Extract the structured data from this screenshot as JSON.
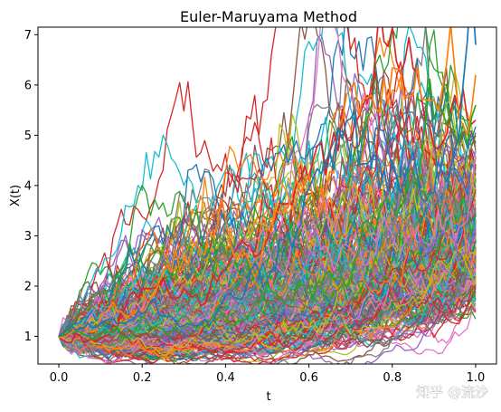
{
  "chart_data": {
    "type": "line",
    "title": "Euler-Maruyama Method",
    "xlabel": "t",
    "ylabel": "X(t)",
    "xlim": [
      -0.05,
      1.05
    ],
    "ylim": [
      0.45,
      7.15
    ],
    "xticks": [
      0.0,
      0.2,
      0.4,
      0.6,
      0.8,
      1.0
    ],
    "xtick_labels": [
      "0.0",
      "0.2",
      "0.4",
      "0.6",
      "0.8",
      "1.0"
    ],
    "yticks": [
      1,
      2,
      3,
      4,
      5,
      6,
      7
    ],
    "ytick_labels": [
      "1",
      "2",
      "3",
      "4",
      "5",
      "6",
      "7"
    ],
    "grid": false,
    "legend": "none",
    "x_start": 0.0,
    "x_end": 1.0,
    "initial_value": 1.0,
    "path_count": 300,
    "path_steps": 100,
    "end_value_range": [
      1.15,
      6.8
    ],
    "highlighted_path_end_values": [
      6.8,
      6.2,
      5.6,
      5.3
    ],
    "series_colors": [
      "#1f77b4",
      "#ff7f0e",
      "#2ca02c",
      "#d62728",
      "#9467bd",
      "#8c564b",
      "#e377c2",
      "#7f7f7f",
      "#bcbd22",
      "#17becf"
    ]
  },
  "watermark": "知乎 @流沙"
}
